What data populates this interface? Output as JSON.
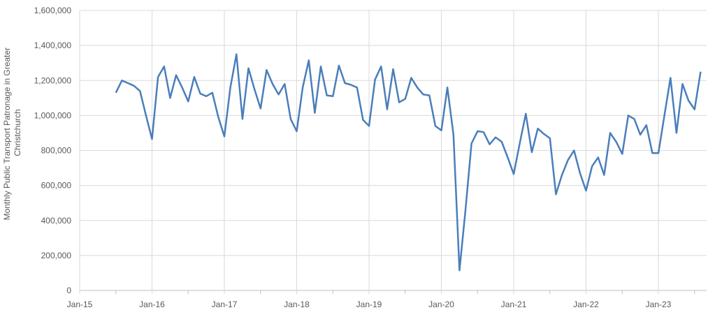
{
  "chart_data": {
    "type": "line",
    "title": "",
    "xlabel": "",
    "ylabel": "Monthly Public Transport Patronage in Greater Christchurch",
    "ylim": [
      0,
      1600000
    ],
    "yticks": [
      "0",
      "200,000",
      "400,000",
      "600,000",
      "800,000",
      "1,000,000",
      "1,200,000",
      "1,400,000",
      "1,600,000"
    ],
    "xticks": [
      "Jan-15",
      "Jan-16",
      "Jan-17",
      "Jan-18",
      "Jan-19",
      "Jan-20",
      "Jan-21",
      "Jan-22",
      "Jan-23"
    ],
    "grid": true,
    "line_color": "#4A7EBB",
    "start_month": "Jul-15",
    "end_month": "Aug-23",
    "values": [
      1130000,
      1200000,
      1185000,
      1170000,
      1140000,
      1000000,
      865000,
      1220000,
      1280000,
      1100000,
      1230000,
      1160000,
      1080000,
      1220000,
      1125000,
      1110000,
      1130000,
      990000,
      880000,
      1160000,
      1350000,
      980000,
      1270000,
      1150000,
      1040000,
      1260000,
      1180000,
      1120000,
      1180000,
      980000,
      910000,
      1160000,
      1315000,
      1015000,
      1280000,
      1115000,
      1110000,
      1285000,
      1185000,
      1175000,
      1160000,
      975000,
      940000,
      1205000,
      1280000,
      1035000,
      1265000,
      1075000,
      1095000,
      1215000,
      1160000,
      1120000,
      1115000,
      940000,
      915000,
      1160000,
      890000,
      115000,
      460000,
      840000,
      910000,
      905000,
      835000,
      875000,
      850000,
      760000,
      665000,
      840000,
      1010000,
      790000,
      925000,
      895000,
      870000,
      550000,
      660000,
      745000,
      800000,
      670000,
      570000,
      710000,
      760000,
      660000,
      900000,
      850000,
      780000,
      1000000,
      980000,
      890000,
      945000,
      785000,
      785000,
      1000000,
      1215000,
      900000,
      1180000,
      1085000,
      1035000,
      1250000
    ]
  }
}
